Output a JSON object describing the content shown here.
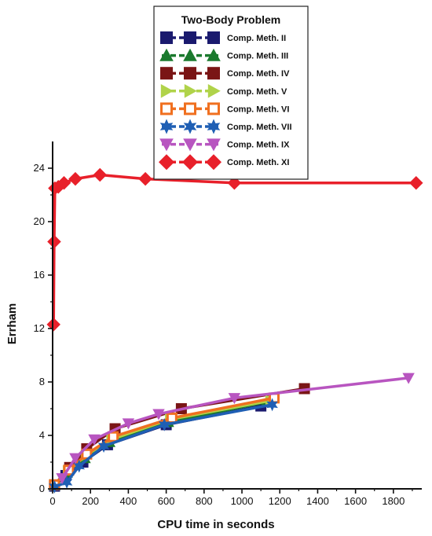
{
  "chart_data": {
    "type": "line",
    "title": "",
    "xlabel": "CPU time in seconds",
    "ylabel": "Errham",
    "xlim": [
      0,
      1950
    ],
    "ylim": [
      0,
      26
    ],
    "xticks": [
      0,
      200,
      400,
      600,
      800,
      1000,
      1200,
      1400,
      1600,
      1800
    ],
    "yticks": [
      0,
      4,
      8,
      12,
      16,
      20,
      24
    ],
    "grid": false,
    "legend": {
      "title": "Two-Body Problem",
      "placement": "top-center"
    },
    "series": [
      {
        "name": "Comp. Meth. II",
        "color": "#1a1a6e",
        "marker": "square",
        "x": [
          10,
          70,
          160,
          290,
          600,
          1100
        ],
        "y": [
          0.2,
          1.0,
          2.0,
          3.3,
          4.8,
          6.2
        ]
      },
      {
        "name": "Comp. Meth. III",
        "color": "#1b7a2e",
        "marker": "triangle-up",
        "x": [
          10,
          75,
          170,
          300,
          610,
          1130
        ],
        "y": [
          0.25,
          1.2,
          2.3,
          3.5,
          5.0,
          6.5
        ]
      },
      {
        "name": "Comp. Meth. IV",
        "color": "#7a1515",
        "marker": "square",
        "x": [
          10,
          90,
          180,
          330,
          680,
          1330
        ],
        "y": [
          0.3,
          1.6,
          3.0,
          4.5,
          6.0,
          7.5
        ]
      },
      {
        "name": "Comp. Meth. V",
        "color": "#b0d34a",
        "marker": "triangle-right",
        "x": [
          10,
          80,
          175,
          310,
          620,
          1150
        ],
        "y": [
          0.3,
          1.3,
          2.5,
          3.7,
          5.2,
          6.6
        ]
      },
      {
        "name": "Comp. Meth. VI",
        "color": "#f07020",
        "marker": "square-open",
        "x": [
          10,
          85,
          180,
          320,
          630,
          1170
        ],
        "y": [
          0.3,
          1.4,
          2.6,
          3.9,
          5.3,
          6.8
        ]
      },
      {
        "name": "Comp. Meth. VII",
        "color": "#1f5fb4",
        "marker": "star",
        "x": [
          10,
          75,
          140,
          270,
          590,
          1160
        ],
        "y": [
          0.15,
          0.5,
          1.7,
          3.2,
          4.8,
          6.3
        ]
      },
      {
        "name": "Comp. Meth. IX",
        "color": "#b855c0",
        "marker": "triangle-down",
        "x": [
          50,
          120,
          220,
          400,
          560,
          960,
          1880
        ],
        "y": [
          0.8,
          2.3,
          3.7,
          4.9,
          5.6,
          6.8,
          8.3
        ]
      },
      {
        "name": "Comp. Meth. XI",
        "color": "#e8202a",
        "marker": "diamond",
        "x": [
          5,
          8,
          12,
          30,
          60,
          120,
          250,
          490,
          960,
          1920
        ],
        "y": [
          12.3,
          18.5,
          22.5,
          22.6,
          22.9,
          23.2,
          23.5,
          23.2,
          22.9,
          22.9
        ]
      }
    ]
  }
}
